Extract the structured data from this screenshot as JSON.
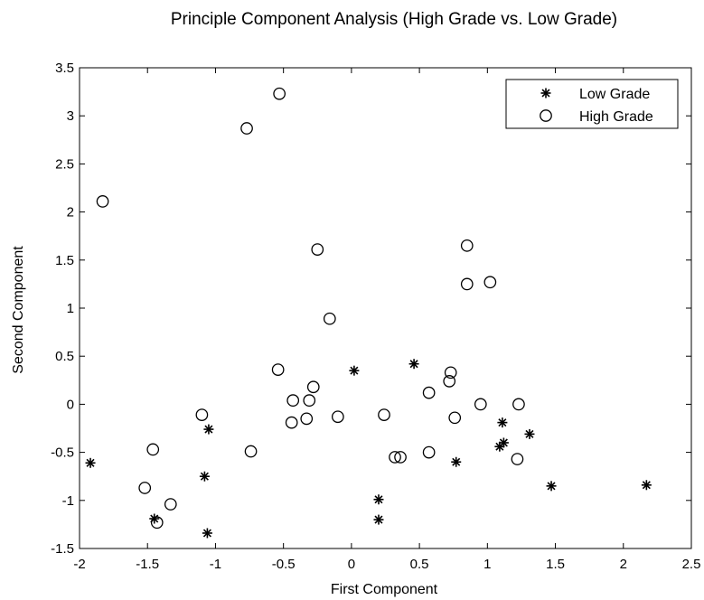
{
  "chart_data": {
    "type": "scatter",
    "title": "Principle Component Analysis (High Grade vs. Low Grade)",
    "xlabel": "First Component",
    "ylabel": "Second Component",
    "xlim": [
      -2,
      2.5
    ],
    "ylim": [
      -1.5,
      3.5
    ],
    "xticks": [
      "-2",
      "-1.5",
      "-1",
      "-0.5",
      "0",
      "0.5",
      "1",
      "1.5",
      "2",
      "2.5"
    ],
    "yticks": [
      "-1.5",
      "-1",
      "-0.5",
      "0",
      "0.5",
      "1",
      "1.5",
      "2",
      "2.5",
      "3",
      "3.5"
    ],
    "grid": false,
    "legend_position": "top-right",
    "series": [
      {
        "name": "Low Grade",
        "marker": "asterisk",
        "points": [
          [
            -1.92,
            -0.61
          ],
          [
            -1.05,
            -0.26
          ],
          [
            -1.08,
            -0.75
          ],
          [
            -1.45,
            -1.19
          ],
          [
            -1.06,
            -1.34
          ],
          [
            0.02,
            0.35
          ],
          [
            0.46,
            0.42
          ],
          [
            0.2,
            -0.99
          ],
          [
            0.2,
            -1.2
          ],
          [
            0.77,
            -0.6
          ],
          [
            1.11,
            -0.19
          ],
          [
            1.12,
            -0.4
          ],
          [
            1.09,
            -0.44
          ],
          [
            1.31,
            -0.31
          ],
          [
            1.47,
            -0.85
          ],
          [
            2.17,
            -0.84
          ]
        ]
      },
      {
        "name": "High Grade",
        "marker": "circle",
        "points": [
          [
            -1.83,
            2.11
          ],
          [
            -0.53,
            3.23
          ],
          [
            -0.77,
            2.87
          ],
          [
            -0.25,
            1.61
          ],
          [
            -0.16,
            0.89
          ],
          [
            0.85,
            1.65
          ],
          [
            0.85,
            1.25
          ],
          [
            1.02,
            1.27
          ],
          [
            -0.54,
            0.36
          ],
          [
            -0.43,
            0.04
          ],
          [
            -0.31,
            0.04
          ],
          [
            -0.28,
            0.18
          ],
          [
            -0.44,
            -0.19
          ],
          [
            -0.33,
            -0.15
          ],
          [
            -0.1,
            -0.13
          ],
          [
            0.24,
            -0.11
          ],
          [
            0.57,
            0.12
          ],
          [
            0.73,
            0.33
          ],
          [
            0.72,
            0.24
          ],
          [
            0.95,
            0.0
          ],
          [
            1.23,
            0.0
          ],
          [
            0.76,
            -0.14
          ],
          [
            1.22,
            -0.57
          ],
          [
            0.57,
            -0.5
          ],
          [
            0.32,
            -0.55
          ],
          [
            0.36,
            -0.55
          ],
          [
            -0.74,
            -0.49
          ],
          [
            -1.1,
            -0.11
          ],
          [
            -1.46,
            -0.47
          ],
          [
            -1.52,
            -0.87
          ],
          [
            -1.33,
            -1.04
          ],
          [
            -1.43,
            -1.23
          ]
        ]
      }
    ]
  }
}
